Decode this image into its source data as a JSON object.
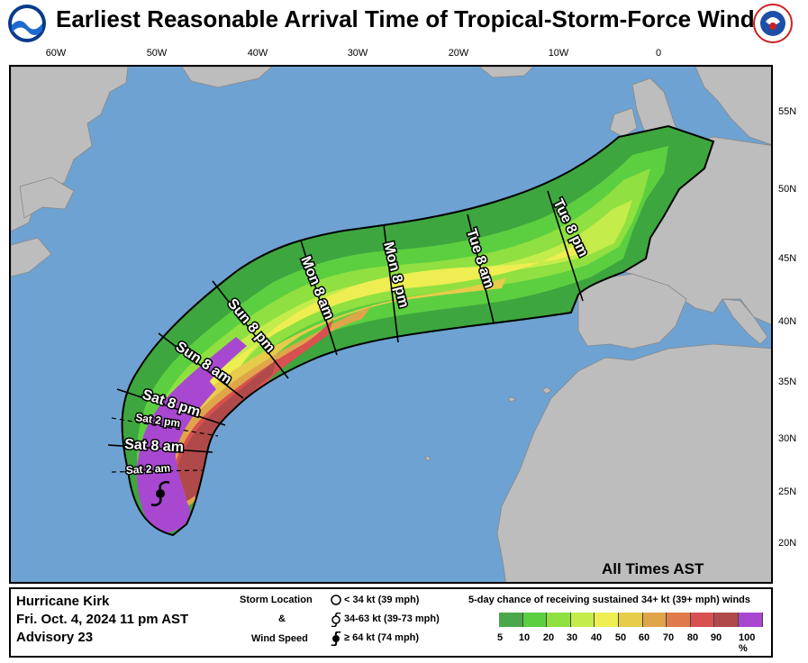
{
  "title": "Earliest Reasonable Arrival Time of Tropical-Storm-Force Winds",
  "longitudes": [
    "60W",
    "50W",
    "40W",
    "30W",
    "20W",
    "10W",
    "0"
  ],
  "latitudes": [
    "55N",
    "50N",
    "45N",
    "40N",
    "35N",
    "30N",
    "25N",
    "20N"
  ],
  "time_labels": [
    "Tue 8 pm",
    "Tue 8 am",
    "Mon 8 pm",
    "Mon 8 am",
    "Sun 8 pm",
    "Sun 8 am",
    "Sat 8 pm",
    "Sat 2 pm",
    "Sat 8 am",
    "Sat 2 am"
  ],
  "all_times": "All Times AST",
  "storm": {
    "name": "Hurricane Kirk",
    "date": "Fri. Oct. 4, 2024  11 pm AST",
    "advisory": "Advisory 23"
  },
  "storm_location": {
    "label1": "Storm Location",
    "amp": "&",
    "label2": "Wind Speed",
    "items": [
      "< 34 kt (39 mph)",
      "34-63 kt (39-73 mph)",
      "≥ 64 kt (74 mph)"
    ]
  },
  "probability_legend": {
    "title": "5-day chance of receiving sustained 34+ kt (39+ mph) winds",
    "ticks": [
      "5",
      "10",
      "20",
      "30",
      "40",
      "50",
      "60",
      "70",
      "80",
      "90",
      "100 %"
    ],
    "colors": [
      "#4aa84a",
      "#5ccf40",
      "#8fe040",
      "#c4ec4a",
      "#eeee52",
      "#e6cc4a",
      "#e0a54a",
      "#e07a4a",
      "#d85050",
      "#b04a4a",
      "#a848d0"
    ]
  },
  "colors": {
    "ocean": "#6ea2d2",
    "land": "#bdbdbd"
  }
}
